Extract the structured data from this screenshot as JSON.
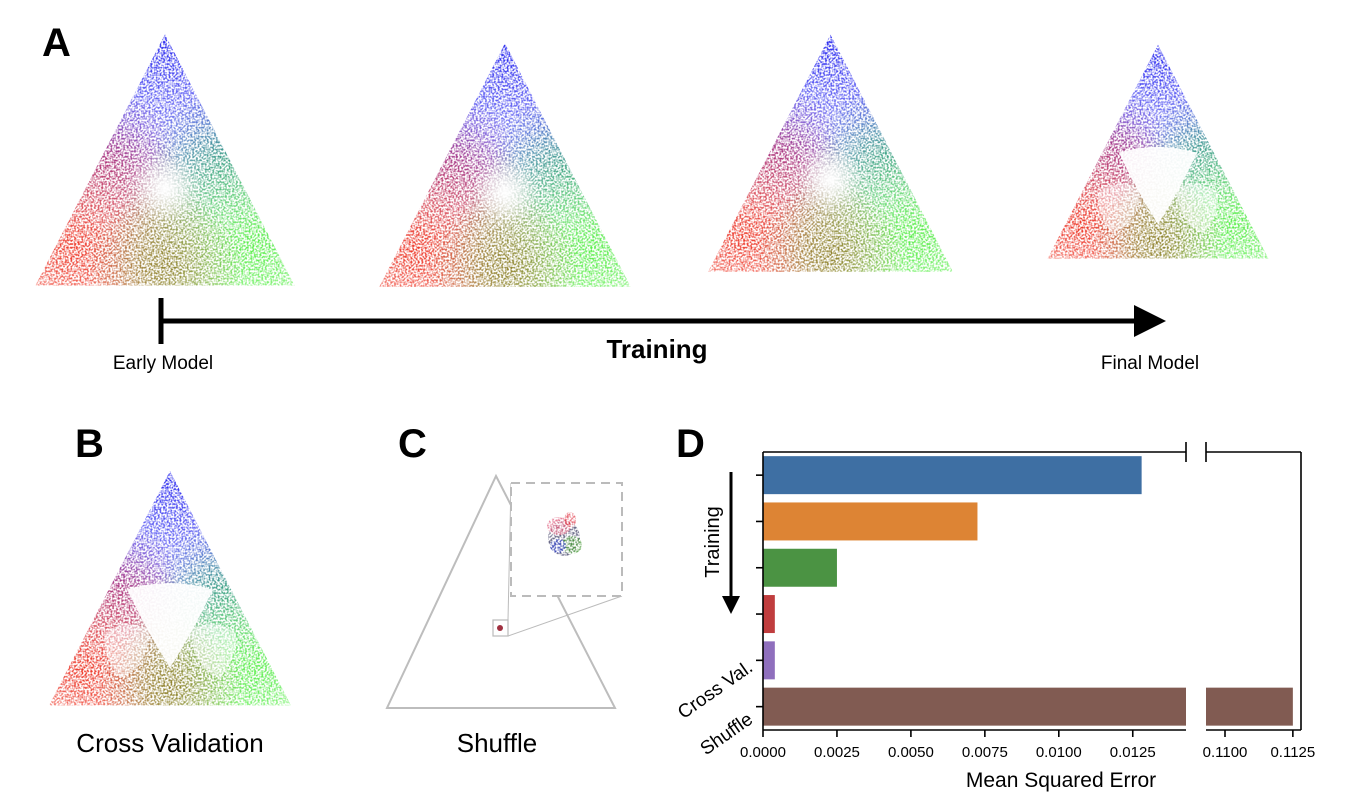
{
  "panels": {
    "a": {
      "letter": "A",
      "start_label": "Early Model",
      "arrow_label": "Training",
      "end_label": "Final Model"
    },
    "b": {
      "letter": "B",
      "caption": "Cross Validation"
    },
    "c": {
      "letter": "C",
      "caption": "Shuffle"
    },
    "d": {
      "letter": "D"
    }
  },
  "colors": {
    "vertex_top": "#2222ee",
    "vertex_left": "#ee3322",
    "vertex_right": "#55ee44"
  },
  "chart_data": {
    "type": "bar",
    "orientation": "horizontal",
    "categories": [
      "",
      "",
      "",
      "",
      "Cross Val.",
      "Shuffle"
    ],
    "values": [
      0.0128,
      0.00725,
      0.0025,
      0.0004,
      0.0004,
      0.1125
    ],
    "colors": [
      "#3e6fa3",
      "#dd8434",
      "#4b9343",
      "#c03d3e",
      "#8f6fbd",
      "#815b52"
    ],
    "xlabel": "Mean Squared Error",
    "x_ticks_left": [
      "0.0000",
      "0.0025",
      "0.0050",
      "0.0075",
      "0.0100",
      "0.0125"
    ],
    "x_ticks_right": [
      "0.1100",
      "0.1125"
    ],
    "xlim_left": [
      0,
      0.0143
    ],
    "xlim_right": [
      0.1093,
      0.1128
    ],
    "axis_break": true,
    "annotation": "Training"
  }
}
